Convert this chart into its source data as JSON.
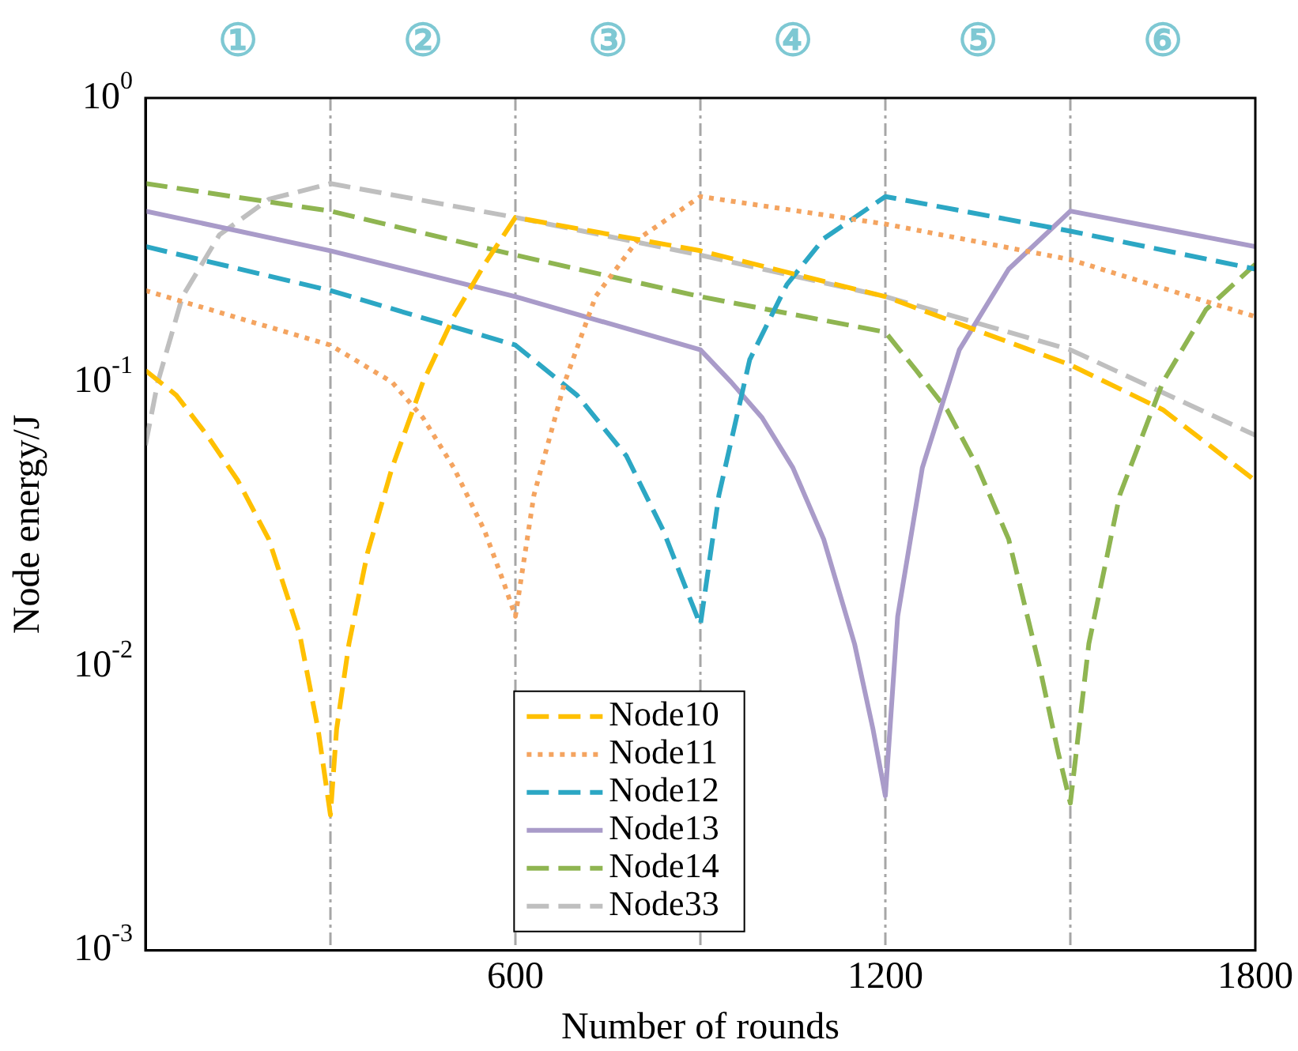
{
  "chart_data": {
    "type": "line",
    "xlabel": "Number of rounds",
    "ylabel": "Node energy/J",
    "log": "y",
    "grid": false,
    "legend": "bottom",
    "marker": "none",
    "xlim": [
      0,
      1800
    ],
    "xticks": [
      600,
      1200,
      1800
    ],
    "ylim": [
      0.001,
      1
    ],
    "yticks": [
      {
        "value": 0.001,
        "label": "10$^{-3}$"
      },
      {
        "value": 0.01,
        "label": "10$^{-2}$"
      },
      {
        "value": 0.1,
        "label": "10$^{-1}$"
      },
      {
        "value": 1,
        "label": "10$^{0}$"
      }
    ],
    "annotations": [
      "①",
      "②",
      "③",
      "④",
      "⑤",
      "⑥"
    ],
    "ref_lines": [
      {
        "axis": "x",
        "value": 300,
        "label": null,
        "color": "#a6a6a6",
        "line_style": "dashed"
      },
      {
        "axis": "x",
        "value": 600,
        "label": null,
        "color": "#a6a6a6",
        "line_style": "dashed"
      },
      {
        "axis": "x",
        "value": 900,
        "label": null,
        "color": "#a6a6a6",
        "line_style": "dashed"
      },
      {
        "axis": "x",
        "value": 1200,
        "label": null,
        "color": "#a6a6a6",
        "line_style": "dashed"
      },
      {
        "axis": "x",
        "value": 1500,
        "label": null,
        "color": "#a6a6a6",
        "line_style": "dashed"
      }
    ],
    "series": [
      {
        "name": "Node10",
        "color": "#ffc000",
        "line_style": "dashed",
        "x": [
          0,
          50,
          100,
          150,
          200,
          250,
          280,
          300,
          310,
          330,
          360,
          400,
          450,
          500,
          550,
          600,
          900,
          1200,
          1500,
          1650,
          1800
        ],
        "values": [
          0.11,
          0.09,
          0.065,
          0.045,
          0.028,
          0.013,
          0.006,
          0.003,
          0.006,
          0.012,
          0.025,
          0.05,
          0.1,
          0.17,
          0.26,
          0.38,
          0.29,
          0.2,
          0.115,
          0.08,
          0.045
        ]
      },
      {
        "name": "Node11",
        "color": "#f4a460",
        "line_style": "dotted",
        "x": [
          0,
          300,
          400,
          450,
          500,
          550,
          580,
          600,
          630,
          680,
          730,
          800,
          900,
          1200,
          1500,
          1800
        ],
        "values": [
          0.21,
          0.135,
          0.1,
          0.075,
          0.05,
          0.03,
          0.02,
          0.015,
          0.04,
          0.1,
          0.2,
          0.32,
          0.45,
          0.36,
          0.27,
          0.17
        ]
      },
      {
        "name": "Node12",
        "color": "#2ca7c4",
        "line_style": "dashed",
        "x": [
          0,
          300,
          600,
          700,
          780,
          840,
          880,
          900,
          930,
          980,
          1040,
          1100,
          1200,
          1500,
          1800
        ],
        "values": [
          0.3,
          0.21,
          0.135,
          0.09,
          0.055,
          0.03,
          0.018,
          0.014,
          0.04,
          0.12,
          0.22,
          0.32,
          0.45,
          0.34,
          0.25
        ]
      },
      {
        "name": "Node13",
        "color": "#a99bc9",
        "line_style": "solid",
        "x": [
          0,
          300,
          600,
          900,
          950,
          1000,
          1050,
          1100,
          1150,
          1180,
          1200,
          1220,
          1260,
          1320,
          1400,
          1500,
          1800
        ],
        "values": [
          0.4,
          0.29,
          0.2,
          0.13,
          0.1,
          0.075,
          0.05,
          0.028,
          0.012,
          0.006,
          0.0035,
          0.015,
          0.05,
          0.13,
          0.25,
          0.4,
          0.3
        ]
      },
      {
        "name": "Node14",
        "color": "#8fb551",
        "line_style": "dashed",
        "x": [
          0,
          300,
          600,
          900,
          1200,
          1250,
          1300,
          1350,
          1400,
          1450,
          1480,
          1500,
          1530,
          1580,
          1650,
          1720,
          1800
        ],
        "values": [
          0.5,
          0.4,
          0.28,
          0.2,
          0.15,
          0.11,
          0.08,
          0.05,
          0.028,
          0.01,
          0.005,
          0.0033,
          0.012,
          0.04,
          0.1,
          0.18,
          0.26
        ]
      },
      {
        "name": "Node33",
        "color": "#bfbfbf",
        "line_style": "dashed",
        "x": [
          0,
          20,
          60,
          120,
          200,
          300,
          600,
          900,
          1200,
          1500,
          1800
        ],
        "values": [
          0.06,
          0.1,
          0.2,
          0.33,
          0.44,
          0.5,
          0.38,
          0.28,
          0.2,
          0.13,
          0.065
        ]
      }
    ]
  }
}
